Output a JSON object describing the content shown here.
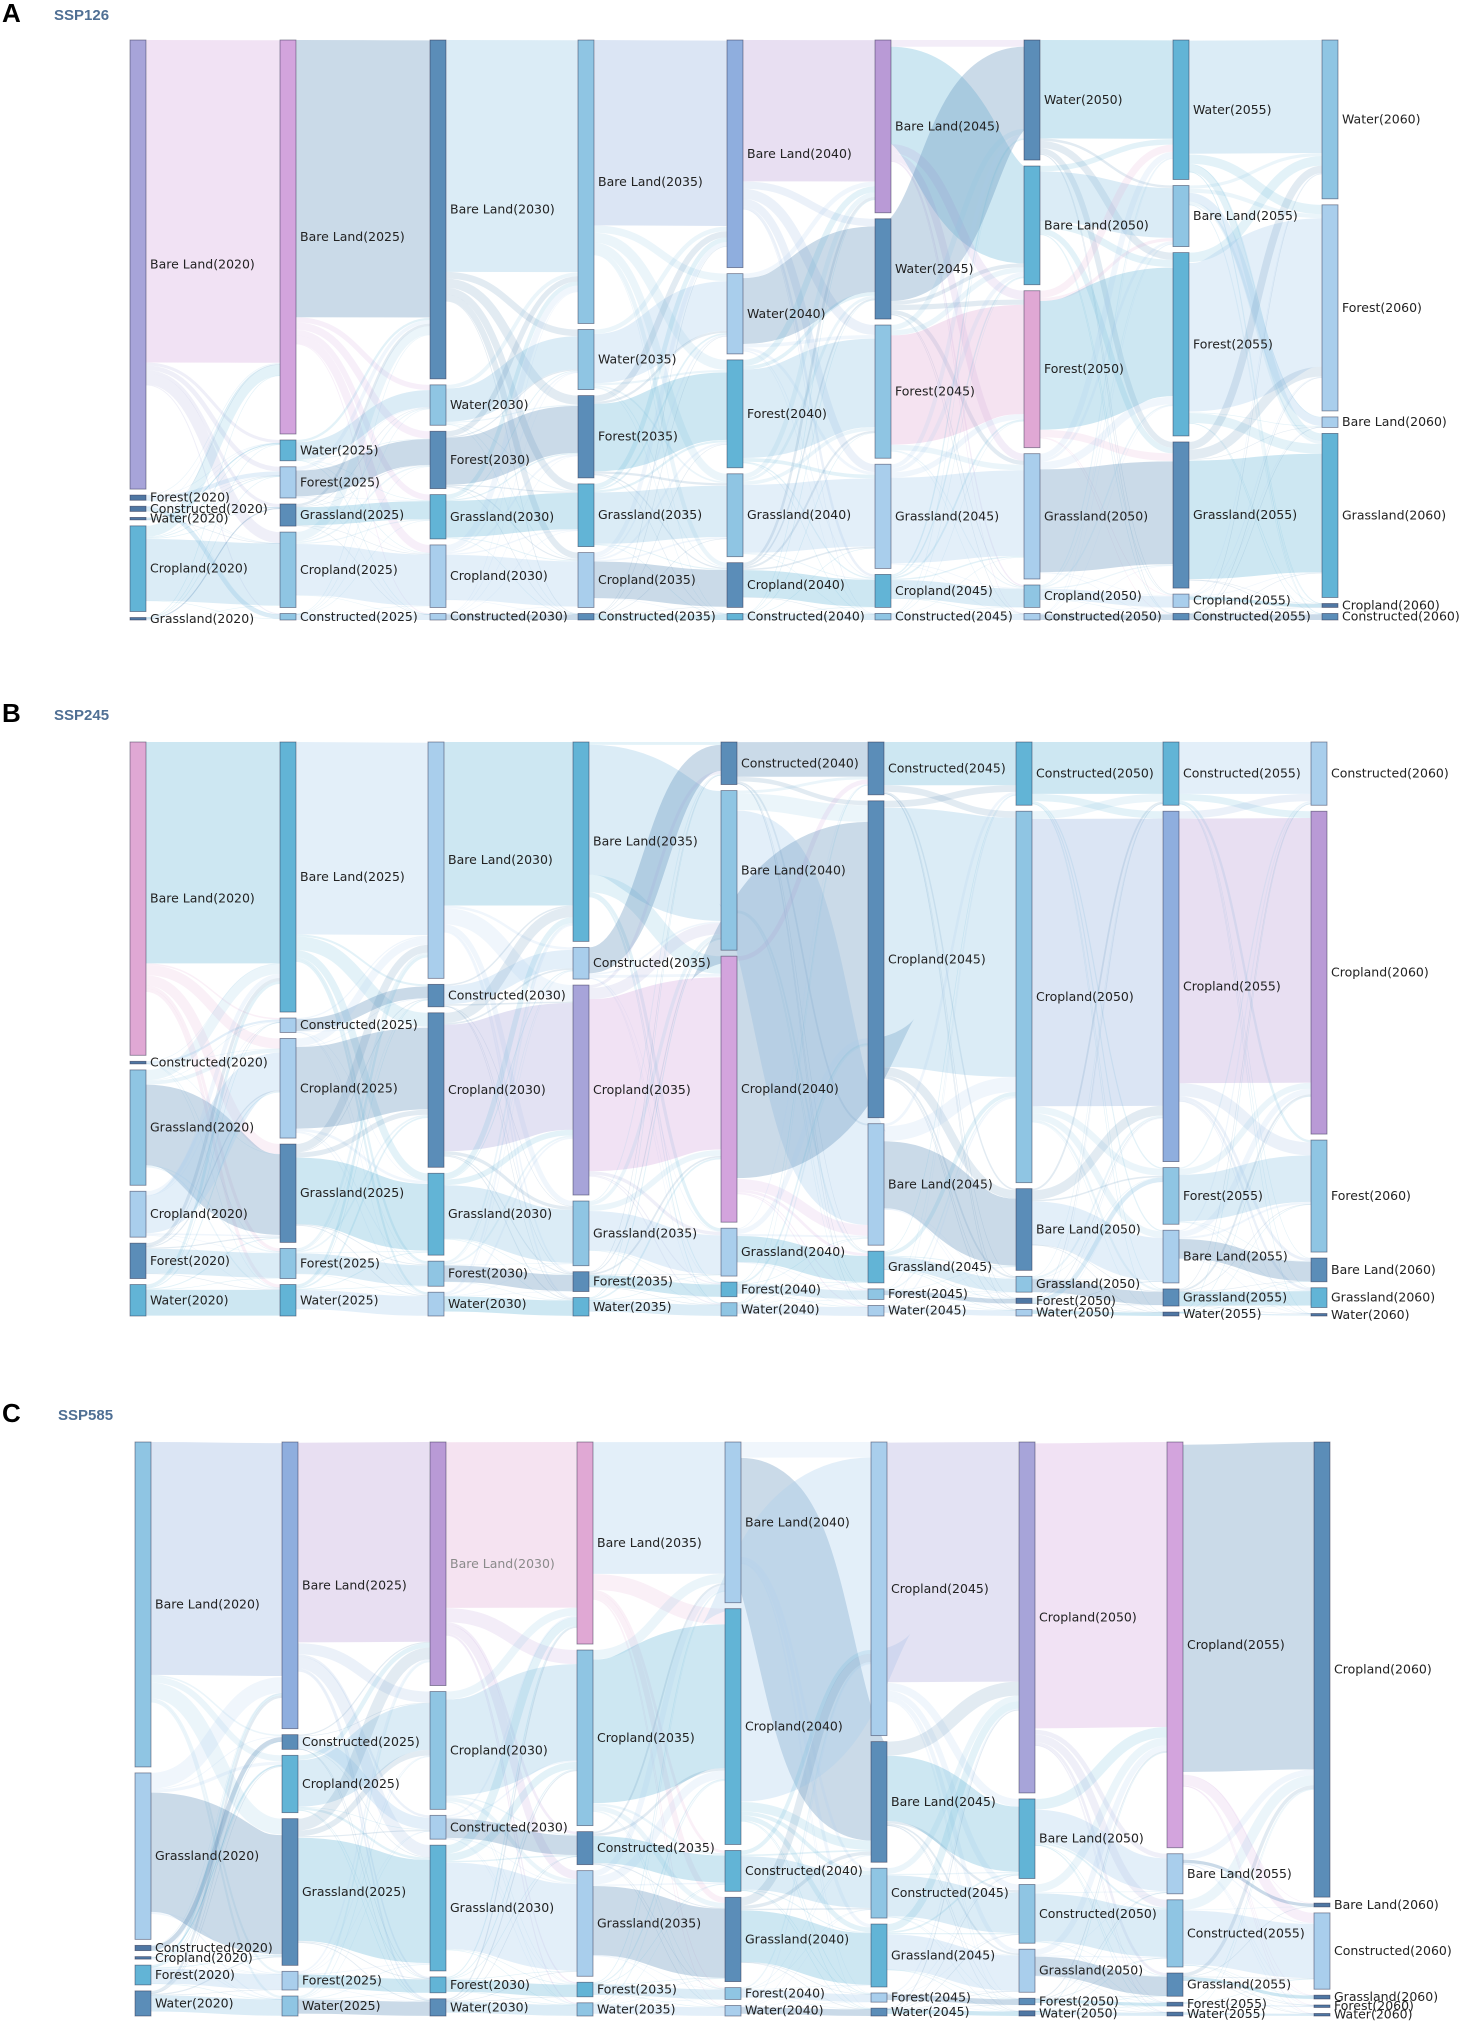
{
  "figure": {
    "panels": [
      {
        "letter": "A",
        "scenario": "SSP126"
      },
      {
        "letter": "B",
        "scenario": "SSP245"
      },
      {
        "letter": "C",
        "scenario": "SSP585"
      }
    ]
  },
  "chart_data": [
    {
      "type": "sankey",
      "panel": "A",
      "title": "SSP126",
      "years": [
        "2020",
        "2025",
        "2030",
        "2035",
        "2040",
        "2045",
        "2050",
        "2055",
        "2060"
      ],
      "columns": [
        [
          [
            "Bare Land",
            34.6
          ],
          [
            "Forest",
            0.4
          ],
          [
            "Constructed",
            0.4
          ],
          [
            "Water",
            0.1
          ],
          [
            "Cropland",
            6.6
          ],
          [
            "Grassland",
            0.1
          ]
        ],
        [
          [
            "Bare Land",
            30.3
          ],
          [
            "Water",
            1.6
          ],
          [
            "Forest",
            2.4
          ],
          [
            "Grassland",
            1.7
          ],
          [
            "Cropland",
            5.8
          ],
          [
            "Constructed",
            0.5
          ]
        ],
        [
          [
            "Bare Land",
            26.0
          ],
          [
            "Water",
            3.1
          ],
          [
            "Forest",
            4.4
          ],
          [
            "Grassland",
            3.4
          ],
          [
            "Cropland",
            4.8
          ],
          [
            "Constructed",
            0.5
          ]
        ],
        [
          [
            "Bare Land",
            21.7
          ],
          [
            "Water",
            4.6
          ],
          [
            "Forest",
            6.3
          ],
          [
            "Grassland",
            4.8
          ],
          [
            "Cropland",
            4.2
          ],
          [
            "Constructed",
            0.5
          ]
        ],
        [
          [
            "Bare Land",
            17.3
          ],
          [
            "Water",
            6.1
          ],
          [
            "Forest",
            8.2
          ],
          [
            "Grassland",
            6.3
          ],
          [
            "Cropland",
            3.4
          ],
          [
            "Constructed",
            0.5
          ]
        ],
        [
          [
            "Bare Land",
            13.1
          ],
          [
            "Water",
            7.6
          ],
          [
            "Forest",
            10.1
          ],
          [
            "Grassland",
            7.9
          ],
          [
            "Cropland",
            2.5
          ],
          [
            "Constructed",
            0.5
          ]
        ],
        [
          [
            "Water",
            9.1
          ],
          [
            "Bare Land",
            9.0
          ],
          [
            "Forest",
            11.9
          ],
          [
            "Grassland",
            9.5
          ],
          [
            "Cropland",
            1.7
          ],
          [
            "Constructed",
            0.5
          ]
        ],
        [
          [
            "Water",
            10.5
          ],
          [
            "Bare Land",
            4.6
          ],
          [
            "Forest",
            13.8
          ],
          [
            "Grassland",
            11.0
          ],
          [
            "Cropland",
            1.0
          ],
          [
            "Constructed",
            0.5
          ]
        ],
        [
          [
            "Water",
            12.1
          ],
          [
            "Forest",
            15.7
          ],
          [
            "Bare Land",
            0.8
          ],
          [
            "Grassland",
            12.5
          ],
          [
            "Cropland",
            0.3
          ],
          [
            "Constructed",
            0.5
          ]
        ]
      ]
    },
    {
      "type": "sankey",
      "panel": "B",
      "title": "SSP245",
      "years": [
        "2020",
        "2025",
        "2030",
        "2035",
        "2040",
        "2045",
        "2050",
        "2055",
        "2060"
      ],
      "columns": [
        [
          [
            "Bare Land",
            23.9
          ],
          [
            "Constructed",
            0.2
          ],
          [
            "Grassland",
            8.8
          ],
          [
            "Cropland",
            3.5
          ],
          [
            "Forest",
            2.7
          ],
          [
            "Water",
            2.4
          ]
        ],
        [
          [
            "Bare Land",
            20.6
          ],
          [
            "Constructed",
            1.1
          ],
          [
            "Cropland",
            7.6
          ],
          [
            "Grassland",
            7.5
          ],
          [
            "Forest",
            2.3
          ],
          [
            "Water",
            2.4
          ]
        ],
        [
          [
            "Bare Land",
            17.9
          ],
          [
            "Constructed",
            1.7
          ],
          [
            "Cropland",
            11.7
          ],
          [
            "Grassland",
            6.2
          ],
          [
            "Forest",
            1.9
          ],
          [
            "Water",
            1.8
          ]
        ],
        [
          [
            "Bare Land",
            15.1
          ],
          [
            "Constructed",
            2.4
          ],
          [
            "Cropland",
            15.9
          ],
          [
            "Grassland",
            4.9
          ],
          [
            "Forest",
            1.5
          ],
          [
            "Water",
            1.4
          ]
        ],
        [
          [
            "Constructed",
            3.2
          ],
          [
            "Bare Land",
            12.0
          ],
          [
            "Cropland",
            20.0
          ],
          [
            "Grassland",
            3.6
          ],
          [
            "Forest",
            1.1
          ],
          [
            "Water",
            1.0
          ]
        ],
        [
          [
            "Constructed",
            4.0
          ],
          [
            "Cropland",
            24.0
          ],
          [
            "Bare Land",
            9.2
          ],
          [
            "Grassland",
            2.4
          ],
          [
            "Forest",
            0.8
          ],
          [
            "Water",
            0.8
          ]
        ],
        [
          [
            "Constructed",
            4.8
          ],
          [
            "Cropland",
            28.2
          ],
          [
            "Bare Land",
            6.2
          ],
          [
            "Grassland",
            1.2
          ],
          [
            "Forest",
            0.4
          ],
          [
            "Water",
            0.5
          ]
        ],
        [
          [
            "Constructed",
            4.8
          ],
          [
            "Cropland",
            26.6
          ],
          [
            "Forest",
            4.3
          ],
          [
            "Bare Land",
            4.0
          ],
          [
            "Grassland",
            1.3
          ],
          [
            "Water",
            0.3
          ]
        ],
        [
          [
            "Constructed",
            4.8
          ],
          [
            "Cropland",
            24.5
          ],
          [
            "Forest",
            8.5
          ],
          [
            "Bare Land",
            1.8
          ],
          [
            "Grassland",
            1.5
          ],
          [
            "Water",
            0.1
          ]
        ]
      ]
    },
    {
      "type": "sankey",
      "panel": "C",
      "title": "SSP585",
      "years": [
        "2020",
        "2025",
        "2030",
        "2035",
        "2040",
        "2045",
        "2050",
        "2055",
        "2060"
      ],
      "columns": [
        [
          [
            "Bare Land",
            24.6
          ],
          [
            "Grassland",
            12.6
          ],
          [
            "Constructed",
            0.4
          ],
          [
            "Cropland",
            0.1
          ],
          [
            "Forest",
            1.5
          ],
          [
            "Water",
            1.9
          ]
        ],
        [
          [
            "Bare Land",
            21.5
          ],
          [
            "Constructed",
            1.1
          ],
          [
            "Cropland",
            4.3
          ],
          [
            "Grassland",
            11.0
          ],
          [
            "Forest",
            1.4
          ],
          [
            "Water",
            1.5
          ]
        ],
        [
          [
            "Bare Land",
            18.4
          ],
          [
            "Cropland",
            8.9
          ],
          [
            "Constructed",
            1.8
          ],
          [
            "Grassland",
            9.5
          ],
          [
            "Forest",
            1.2
          ],
          [
            "Water",
            1.3
          ]
        ],
        [
          [
            "Bare Land",
            15.3
          ],
          [
            "Cropland",
            13.3
          ],
          [
            "Constructed",
            2.5
          ],
          [
            "Grassland",
            8.0
          ],
          [
            "Forest",
            1.1
          ],
          [
            "Water",
            1.0
          ]
        ],
        [
          [
            "Bare Land",
            12.2
          ],
          [
            "Cropland",
            17.9
          ],
          [
            "Constructed",
            3.1
          ],
          [
            "Grassland",
            6.4
          ],
          [
            "Forest",
            0.9
          ],
          [
            "Water",
            0.8
          ]
        ],
        [
          [
            "Cropland",
            22.4
          ],
          [
            "Bare Land",
            9.2
          ],
          [
            "Constructed",
            3.8
          ],
          [
            "Grassland",
            4.8
          ],
          [
            "Forest",
            0.7
          ],
          [
            "Water",
            0.6
          ]
        ],
        [
          [
            "Cropland",
            26.9
          ],
          [
            "Bare Land",
            6.1
          ],
          [
            "Constructed",
            4.5
          ],
          [
            "Grassland",
            3.3
          ],
          [
            "Forest",
            0.5
          ],
          [
            "Water",
            0.4
          ]
        ],
        [
          [
            "Cropland",
            31.4
          ],
          [
            "Bare Land",
            3.1
          ],
          [
            "Constructed",
            5.2
          ],
          [
            "Grassland",
            1.8
          ],
          [
            "Forest",
            0.3
          ],
          [
            "Water",
            0.3
          ]
        ],
        [
          [
            "Cropland",
            35.8
          ],
          [
            "Bare Land",
            0.3
          ],
          [
            "Constructed",
            6.0
          ],
          [
            "Grassland",
            0.3
          ],
          [
            "Forest",
            0.1
          ],
          [
            "Water",
            0.2
          ]
        ]
      ]
    }
  ],
  "colors": {
    "ramp": [
      "#5b8db8",
      "#62b4d6",
      "#8fc5e3",
      "#a9ceec",
      "#8faede",
      "#a7a4d9",
      "#b99ad6",
      "#d3a4dd",
      "#e0a8d4"
    ],
    "flow_alpha": 0.32
  }
}
